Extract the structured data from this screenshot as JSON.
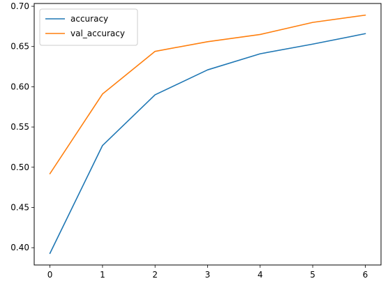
{
  "chart_data": {
    "type": "line",
    "x": [
      0,
      1,
      2,
      3,
      4,
      5,
      6
    ],
    "series": [
      {
        "name": "accuracy",
        "color": "#1f77b4",
        "values": [
          0.393,
          0.527,
          0.59,
          0.621,
          0.641,
          0.653,
          0.666
        ]
      },
      {
        "name": "val_accuracy",
        "color": "#ff7f0e",
        "values": [
          0.492,
          0.591,
          0.644,
          0.656,
          0.665,
          0.68,
          0.689
        ]
      }
    ],
    "xticks": [
      "0",
      "1",
      "2",
      "3",
      "4",
      "5",
      "6"
    ],
    "yticks": [
      "0.40",
      "0.45",
      "0.50",
      "0.55",
      "0.60",
      "0.65",
      "0.70"
    ],
    "xlim": [
      -0.3,
      6.3
    ],
    "ylim": [
      0.3785,
      0.7035
    ],
    "grid": false,
    "legend_position": "upper-left"
  }
}
